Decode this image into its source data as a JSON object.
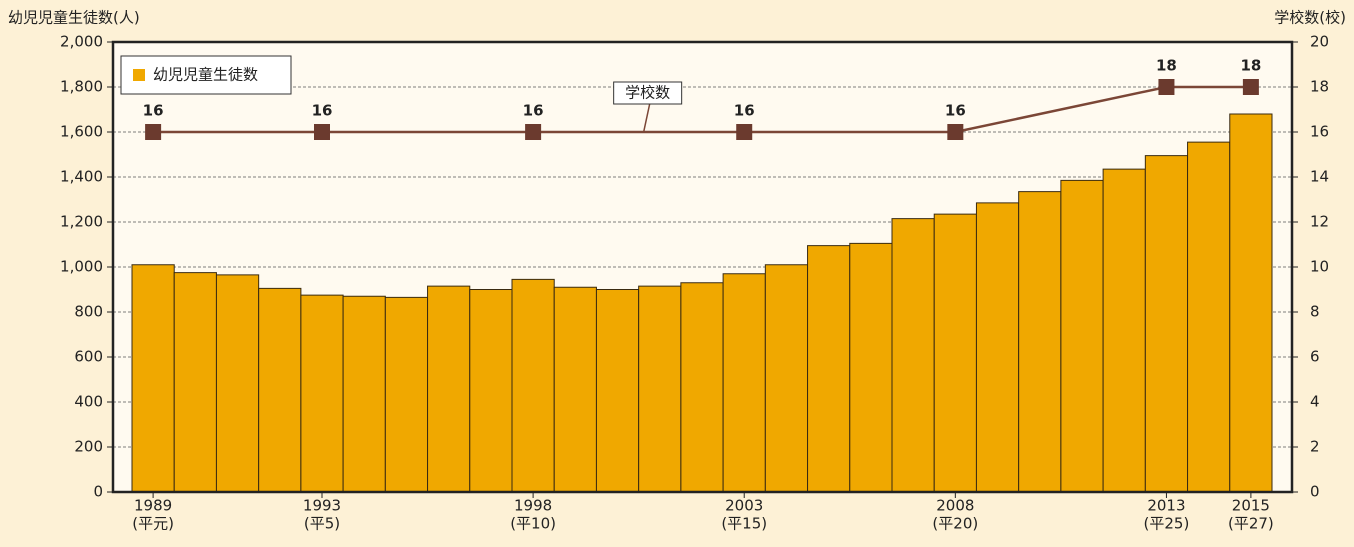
{
  "chart_data": {
    "type": "bar",
    "y_axis_title": "幼児児童生徒数(人)",
    "y2_axis_title": "学校数(校)",
    "categories": [
      "1989",
      null,
      null,
      null,
      "1993",
      null,
      null,
      null,
      null,
      "1998",
      null,
      null,
      null,
      null,
      "2003",
      null,
      null,
      null,
      null,
      "2008",
      null,
      null,
      null,
      null,
      "2013",
      null,
      "2015"
    ],
    "category_sublabels": [
      "(平元)",
      null,
      null,
      null,
      "(平5)",
      null,
      null,
      null,
      null,
      "(平10)",
      null,
      null,
      null,
      null,
      "(平15)",
      null,
      null,
      null,
      null,
      "(平20)",
      null,
      null,
      null,
      null,
      "(平25)",
      null,
      "(平27)"
    ],
    "series": [
      {
        "name": "幼児児童生徒数",
        "type": "bar",
        "color": "#f0a800",
        "values": [
          1010,
          975,
          965,
          905,
          875,
          870,
          865,
          915,
          900,
          945,
          910,
          900,
          915,
          930,
          970,
          1010,
          1095,
          1105,
          1215,
          1235,
          1285,
          1335,
          1385,
          1435,
          1495,
          1555,
          1680
        ]
      },
      {
        "name": "学校数",
        "type": "line",
        "axis": "y2",
        "color": "#7b4636",
        "x": [
          1989,
          1993,
          1998,
          2003,
          2008,
          2013,
          2015
        ],
        "values": [
          16,
          16,
          16,
          16,
          16,
          18,
          18
        ]
      }
    ],
    "ylim": [
      0,
      2000
    ],
    "yticks": [
      0,
      200,
      400,
      600,
      800,
      {
        "value": 1000,
        "label": "1,000"
      },
      {
        "value": 1200,
        "label": "1,200"
      },
      {
        "value": 1400,
        "label": "1,400"
      },
      {
        "value": 1600,
        "label": "1,600"
      },
      {
        "value": 1800,
        "label": "1,800"
      },
      {
        "value": 2000,
        "label": "2,000"
      }
    ],
    "y2lim": [
      0,
      20
    ],
    "y2ticks": [
      0,
      2,
      4,
      6,
      8,
      10,
      12,
      14,
      16,
      18,
      20
    ],
    "grid": true,
    "legend": "upper left"
  }
}
